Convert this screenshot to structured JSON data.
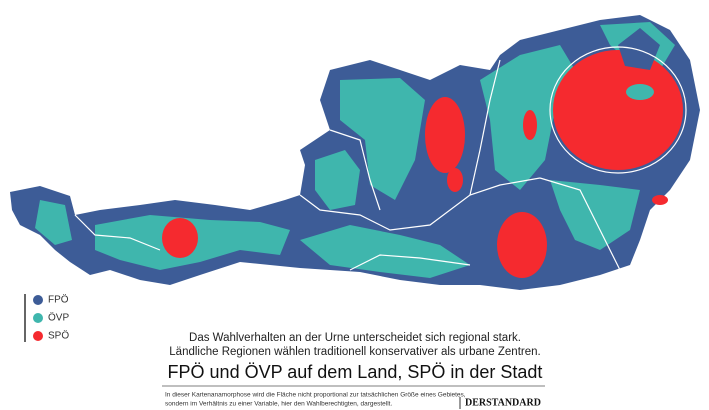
{
  "legend": [
    {
      "label": "FPÖ",
      "color": "#3d5c97"
    },
    {
      "label": "ÖVP",
      "color": "#3fb6ad"
    },
    {
      "label": "SPÖ",
      "color": "#f52a2f"
    }
  ],
  "caption": {
    "lines": [
      "Das Wahlverhalten an der Urne unterscheidet sich regional stark.",
      "Ländliche Regionen wählen traditionell konservativer als urbane Zentren."
    ],
    "title": "FPÖ und ÖVP auf dem Land, SPÖ in der Stadt",
    "note": [
      "In dieser Kartenanamorphose wird die Fläche nicht proportional zur tatsächlichen Größe eines Gebietes,",
      "sondern im Verhältnis zu einer Variable, hier den Wahlberechtigten, dargestellt."
    ],
    "source": "DERSTANDARD"
  }
}
